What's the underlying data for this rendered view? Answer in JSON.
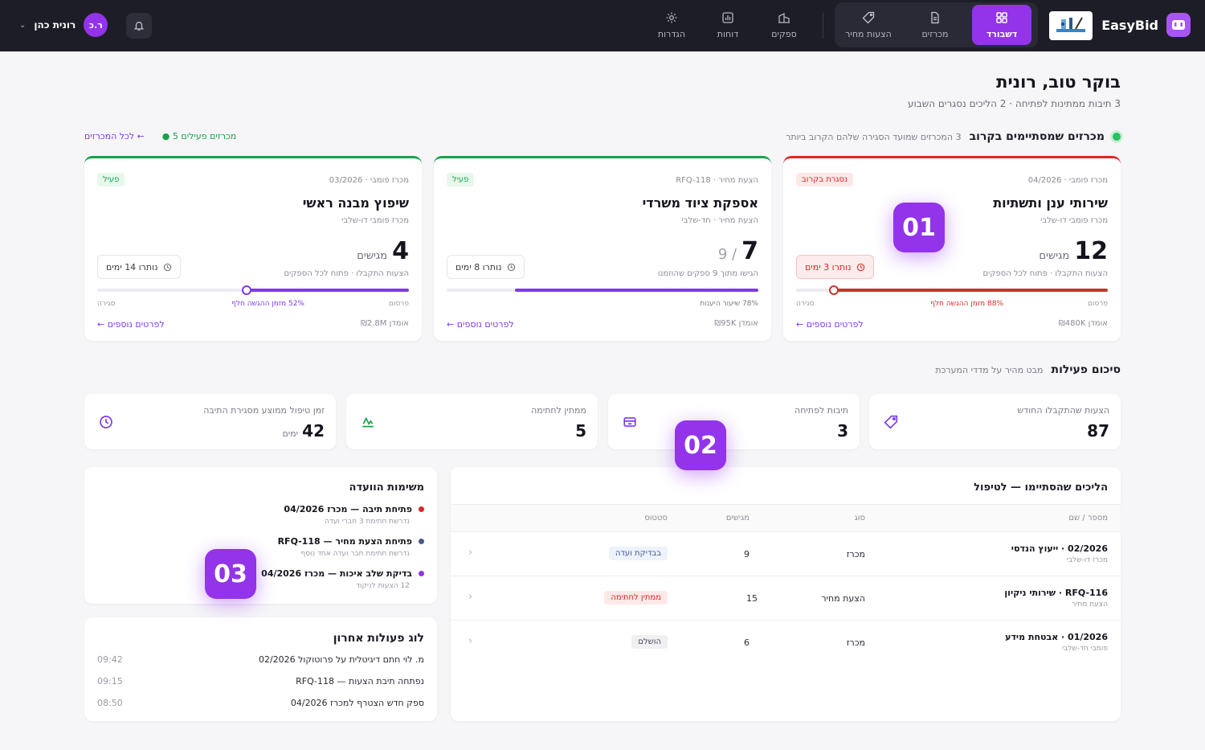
{
  "brand": {
    "name": "EasyBid"
  },
  "nav": [
    {
      "label": "דשבורד",
      "icon": "grid-icon"
    },
    {
      "label": "מכרזים",
      "icon": "document-icon"
    },
    {
      "label": "הצעות מחיר",
      "icon": "tag-icon"
    },
    {
      "label": "ספקים",
      "icon": "building-icon"
    },
    {
      "label": "דוחות",
      "icon": "chart-icon"
    },
    {
      "label": "הגדרות",
      "icon": "gear-icon"
    }
  ],
  "user": {
    "name": "רונית כהן",
    "initials": "ר.כ"
  },
  "greeting": {
    "title": "בוקר טוב, רונית",
    "subtitle": "3 תיבות ממתינות לפתיחה · 2 הליכים נסגרים השבוע"
  },
  "closing": {
    "title": "מכרזים שמסתיימים בקרוב",
    "subtitle": "3 המכרזים שמועד הסגירה שלהם הקרוב ביותר",
    "active": "5 מכרזים פעילים",
    "all": "לכל המכרזים ←"
  },
  "cards": [
    {
      "meta": "מכרז פומבי · 04/2026",
      "badge": "נסגרת בקרוב",
      "title": "שירותי ענן ותשתיות",
      "sub": "מכרז פומבי דו-שלבי",
      "count": "12",
      "unit": "מגישים",
      "of": "",
      "desc": "הצעות התקבלו · פתוח לכל הספקים",
      "remaining": "נותרו 3 ימים",
      "progress": 0.88,
      "left_label": "סגירה",
      "right_label": "פרסום",
      "mid_label": "88% מזמן ההגשה חלף",
      "foot": "אומדן 480K₪",
      "more": "לפרטים נוספים ←"
    },
    {
      "meta": "הצעת מחיר · RFQ-118",
      "badge": "פעיל",
      "title": "אספקת ציוד משרדי",
      "sub": "הצעת מחיר · חד-שלבי",
      "count": "7",
      "unit": "",
      "of": "/ 9",
      "desc": "הגישו מתוך 9 ספקים שהוזמנו",
      "remaining": "נותרו 8 ימים",
      "progress": 0.78,
      "left_label": "",
      "right_label": "",
      "mid_label": "78% שיעור היענות",
      "foot": "אומדן 95K₪",
      "more": "לפרטים נוספים ←"
    },
    {
      "meta": "מכרז פומבי · 03/2026",
      "badge": "פעיל",
      "title": "שיפוץ מבנה ראשי",
      "sub": "מכרז פומבי דו-שלבי",
      "count": "4",
      "unit": "מגישים",
      "of": "",
      "desc": "הצעות התקבלו · פתוח לכל הספקים",
      "remaining": "נותרו 14 ימים",
      "progress": 0.52,
      "left_label": "סגירה",
      "right_label": "פרסום",
      "mid_label": "52% מזמן ההגשה חלף",
      "foot": "אומדן 2.8M₪",
      "more": "לפרטים נוספים ←"
    }
  ],
  "summary": {
    "title": "סיכום פעילות",
    "subtitle": "מבט מהיר על מדדי המערכת"
  },
  "stats": [
    {
      "label": "הצעות שהתקבלו החודש",
      "value": "87",
      "unit": "",
      "icon": "tag-icon"
    },
    {
      "label": "תיבות לפתיחה",
      "value": "3",
      "unit": "",
      "icon": "inbox-icon"
    },
    {
      "label": "ממתין לחתימה",
      "value": "5",
      "unit": "",
      "icon": "signature-icon"
    },
    {
      "label": "זמן טיפול ממוצע מסגירת התיבה",
      "value": "42",
      "unit": "ימים",
      "icon": "clock-icon"
    }
  ],
  "table": {
    "title": "הליכים שהסתיימו — לטיפול",
    "headers": [
      "מספר / שם",
      "סוג",
      "מגישים",
      "סטטוס"
    ],
    "rows": [
      {
        "name": "02/2026 · ייעוץ הנדסי",
        "sub": "מכרז דו-שלבי",
        "type": "מכרז",
        "count": "9",
        "status": "בבדיקת ועדה"
      },
      {
        "name": "RFQ-116 · שירותי ניקיון",
        "sub": "הצעת מחיר",
        "type": "הצעת מחיר",
        "count": "15",
        "status": "ממתין לחתימה"
      },
      {
        "name": "01/2026 · אבטחת מידע",
        "sub": "פומבי חד-שלבי",
        "type": "מכרז",
        "count": "6",
        "status": "הושלם"
      }
    ]
  },
  "tasks": {
    "title": "משימות הוועדה",
    "items": [
      {
        "title": "פתיחת תיבה — מכרז 04/2026",
        "sub": "נדרשת חתימת 3 חברי ועדה",
        "color": "#dc2626"
      },
      {
        "title": "פתיחת הצעת מחיר — RFQ-118",
        "sub": "נדרשת חתימת חבר ועדה אחד נוסף",
        "color": "#4a5b8a"
      },
      {
        "title": "בדיקת שלב איכות — מכרז 04/2026",
        "sub": "12 הצעות לניקוד",
        "color": "#9333ea"
      }
    ]
  },
  "log": {
    "title": "לוג פעולות אחרון",
    "items": [
      {
        "time": "09:42",
        "text": "מ. לוי חתם דיגיטלית על פרוטוקול 02/2026"
      },
      {
        "time": "09:15",
        "text": "נפתחה תיבת הצעות — RFQ-118"
      },
      {
        "time": "08:50",
        "text": "ספק חדש הצטרף למכרז 04/2026"
      }
    ]
  },
  "markers": [
    "01",
    "02",
    "03"
  ]
}
